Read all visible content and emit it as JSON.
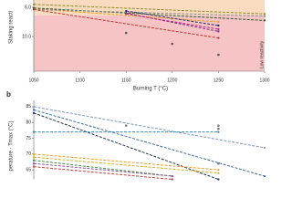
{
  "chart_data": [
    {
      "type": "line",
      "ylabel": "Slaking reacti",
      "xlabel": "Burning T (°C)",
      "annotation": "Low reactivity",
      "xlim": [
        1050,
        1300
      ],
      "xticks": [
        1050,
        1100,
        1150,
        1200,
        1250,
        1300
      ],
      "ylim": [
        5,
        14.75
      ],
      "inverted": true,
      "yticks": [
        {
          "value": 6,
          "label": "6.0"
        },
        {
          "value": 10,
          "label": "10.0"
        }
      ],
      "bands": [
        {
          "from": 5,
          "to": 7.1,
          "color": "#f9dcc0"
        },
        {
          "from": 7.1,
          "to": 14.75,
          "color": "#f6c4c4"
        }
      ],
      "series": [
        {
          "color": "#8a8a2a",
          "x": [
            1050,
            1300
          ],
          "values": [
            5.6,
            6.9
          ]
        },
        {
          "color": "#e8a020",
          "x": [
            1050,
            1250
          ],
          "values": [
            6.2,
            8.0
          ]
        },
        {
          "color": "#2e5a2e",
          "x": [
            1050,
            1300
          ],
          "values": [
            6.1,
            7.8
          ]
        },
        {
          "color": "#888888",
          "x": [
            1050,
            1300
          ],
          "values": [
            6.3,
            7.2
          ]
        },
        {
          "color": "#2a2a6a",
          "x": [
            1150,
            1250
          ],
          "values": [
            6.5,
            8.5
          ]
        },
        {
          "color": "#7a2a8a",
          "x": [
            1150,
            1250
          ],
          "values": [
            6.8,
            9.3
          ]
        },
        {
          "color": "#c0208a",
          "x": [
            1150,
            1250
          ],
          "values": [
            6.9,
            9.0
          ]
        },
        {
          "color": "#c03030",
          "x": [
            1050,
            1250
          ],
          "values": [
            6.3,
            10.2
          ]
        }
      ],
      "points": {
        "color": "#555555",
        "x": [
          1150,
          1200,
          1250
        ],
        "values": [
          9.5,
          11,
          12.5
        ]
      }
    },
    {
      "type": "line",
      "panel_label": "b",
      "ylabel": "perature - Tmax (°C)",
      "xlim": [
        1050,
        1300
      ],
      "ylim": [
        62,
        87
      ],
      "yticks": [
        65,
        70,
        75,
        80,
        85
      ],
      "series": [
        {
          "color": "#203050",
          "x": [
            1050,
            1250
          ],
          "values": [
            83,
            62
          ]
        },
        {
          "color": "#3a6ea5",
          "x": [
            1050,
            1300
          ],
          "values": [
            84,
            63
          ]
        },
        {
          "color": "#7a9ac0",
          "x": [
            1050,
            1300
          ],
          "values": [
            85,
            72
          ]
        },
        {
          "color": "#2a8ab0",
          "x": [
            1050,
            1250
          ],
          "values": [
            77,
            77
          ]
        },
        {
          "color": "#e8a020",
          "x": [
            1050,
            1250
          ],
          "values": [
            70,
            65
          ]
        },
        {
          "color": "#d4b020",
          "x": [
            1050,
            1250
          ],
          "values": [
            69,
            64
          ]
        },
        {
          "color": "#4a8a4a",
          "x": [
            1050,
            1200
          ],
          "values": [
            68,
            63
          ]
        },
        {
          "color": "#8a5aa0",
          "x": [
            1050,
            1200
          ],
          "values": [
            67,
            63
          ]
        },
        {
          "color": "#c04040",
          "x": [
            1050,
            1200
          ],
          "values": [
            66,
            62
          ]
        }
      ],
      "points": {
        "color": "#7a7a7a",
        "x": [
          1150,
          1250,
          1250,
          1250
        ],
        "values": [
          79,
          79,
          78,
          67
        ]
      }
    }
  ]
}
